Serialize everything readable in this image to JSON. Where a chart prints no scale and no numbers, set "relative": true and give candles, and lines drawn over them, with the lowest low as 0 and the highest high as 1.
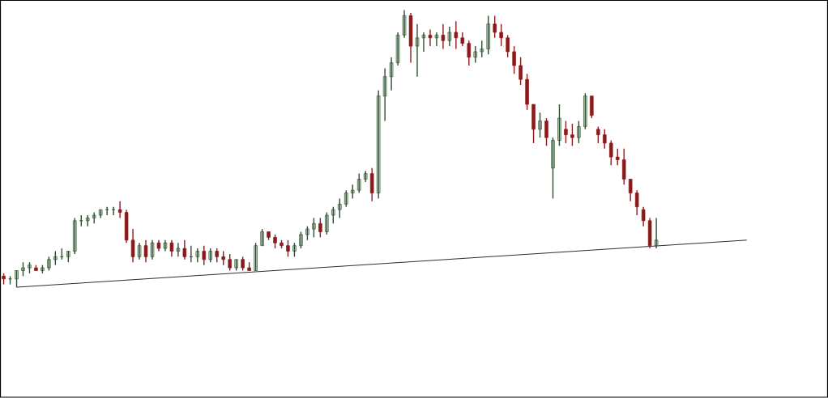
{
  "chart_data": {
    "type": "candlestick",
    "relative": true,
    "categories": [
      null,
      null,
      null,
      null,
      null,
      null,
      null,
      null,
      null,
      null,
      null,
      null,
      null,
      null,
      null,
      null,
      null,
      null,
      null,
      null,
      null,
      null,
      null,
      null,
      null,
      null,
      null,
      null,
      null,
      null,
      null,
      null,
      null,
      null,
      null,
      null,
      null,
      null,
      null,
      null,
      null,
      null,
      null,
      null,
      null,
      null,
      null,
      null,
      null,
      null,
      null,
      null,
      null,
      null,
      null,
      null,
      null,
      null,
      null,
      null,
      null,
      null,
      null,
      null,
      null,
      null,
      null,
      null,
      null,
      null,
      null,
      null,
      null,
      null,
      null,
      null,
      null,
      null,
      null,
      null,
      null,
      null,
      null,
      null,
      null,
      null,
      null,
      null,
      null,
      null,
      null,
      null,
      null,
      null,
      null,
      null,
      null,
      null,
      null,
      null,
      null,
      null,
      null,
      null,
      null,
      null,
      null,
      null,
      null,
      null,
      null,
      null,
      null,
      null,
      null,
      null,
      null,
      null,
      null,
      null,
      null,
      null,
      null,
      null,
      null,
      null,
      null,
      null
    ],
    "ohlc": [
      [
        0.04,
        0.05,
        0.01,
        0.03
      ],
      [
        0.03,
        0.04,
        0.01,
        0.03
      ],
      [
        0.03,
        0.06,
        0,
        0.06
      ],
      [
        0.06,
        0.09,
        0.04,
        0.07
      ],
      [
        0.07,
        0.09,
        0.05,
        0.08
      ],
      [
        0.07,
        0.08,
        0.06,
        0.06
      ],
      [
        0.06,
        0.08,
        0.05,
        0.07
      ],
      [
        0.07,
        0.11,
        0.06,
        0.1
      ],
      [
        0.1,
        0.13,
        0.08,
        0.11
      ],
      [
        0.11,
        0.14,
        0.1,
        0.11
      ],
      [
        0.11,
        0.13,
        0.09,
        0.13
      ],
      [
        0.13,
        0.25,
        0.12,
        0.24
      ],
      [
        0.24,
        0.26,
        0.22,
        0.24
      ],
      [
        0.24,
        0.26,
        0.22,
        0.25
      ],
      [
        0.25,
        0.27,
        0.23,
        0.26
      ],
      [
        0.26,
        0.28,
        0.25,
        0.28
      ],
      [
        0.28,
        0.29,
        0.26,
        0.28
      ],
      [
        0.28,
        0.29,
        0.26,
        0.28
      ],
      [
        0.28,
        0.31,
        0.25,
        0.27
      ],
      [
        0.27,
        0.28,
        0.16,
        0.17
      ],
      [
        0.17,
        0.21,
        0.09,
        0.11
      ],
      [
        0.11,
        0.16,
        0.1,
        0.15
      ],
      [
        0.15,
        0.17,
        0.09,
        0.11
      ],
      [
        0.11,
        0.17,
        0.1,
        0.16
      ],
      [
        0.16,
        0.17,
        0.13,
        0.14
      ],
      [
        0.14,
        0.17,
        0.13,
        0.16
      ],
      [
        0.16,
        0.17,
        0.11,
        0.13
      ],
      [
        0.13,
        0.16,
        0.11,
        0.14
      ],
      [
        0.14,
        0.17,
        0.1,
        0.11
      ],
      [
        0.11,
        0.15,
        0.09,
        0.11
      ],
      [
        0.11,
        0.14,
        0.09,
        0.13
      ],
      [
        0.13,
        0.15,
        0.08,
        0.1
      ],
      [
        0.1,
        0.14,
        0.09,
        0.13
      ],
      [
        0.13,
        0.14,
        0.09,
        0.11
      ],
      [
        0.11,
        0.13,
        0.08,
        0.1
      ],
      [
        0.1,
        0.12,
        0.06,
        0.07
      ],
      [
        0.07,
        0.1,
        0.06,
        0.1
      ],
      [
        0.1,
        0.11,
        0.06,
        0.07
      ],
      [
        0.07,
        0.09,
        0.06,
        0.06
      ],
      [
        0.06,
        0.16,
        0.06,
        0.15
      ],
      [
        0.15,
        0.21,
        0.15,
        0.2
      ],
      [
        0.2,
        0.2,
        0.17,
        0.18
      ],
      [
        0.18,
        0.19,
        0.14,
        0.16
      ],
      [
        0.16,
        0.17,
        0.14,
        0.15
      ],
      [
        0.15,
        0.17,
        0.11,
        0.13
      ],
      [
        0.13,
        0.16,
        0.11,
        0.15
      ],
      [
        0.15,
        0.2,
        0.14,
        0.19
      ],
      [
        0.19,
        0.22,
        0.17,
        0.21
      ],
      [
        0.21,
        0.25,
        0.18,
        0.23
      ],
      [
        0.23,
        0.25,
        0.18,
        0.2
      ],
      [
        0.2,
        0.27,
        0.19,
        0.26
      ],
      [
        0.26,
        0.29,
        0.23,
        0.28
      ],
      [
        0.28,
        0.32,
        0.25,
        0.3
      ],
      [
        0.3,
        0.35,
        0.29,
        0.34
      ],
      [
        0.34,
        0.37,
        0.32,
        0.35
      ],
      [
        0.35,
        0.41,
        0.34,
        0.39
      ],
      [
        0.39,
        0.42,
        0.38,
        0.41
      ],
      [
        0.41,
        0.43,
        0.31,
        0.34
      ],
      [
        0.34,
        0.71,
        0.32,
        0.69
      ],
      [
        0.69,
        0.79,
        0.6,
        0.76
      ],
      [
        0.76,
        0.83,
        0.71,
        0.81
      ],
      [
        0.81,
        0.92,
        0.8,
        0.91
      ],
      [
        0.91,
        1,
        0.9,
        0.98
      ],
      [
        0.98,
        0.99,
        0.81,
        0.87
      ],
      [
        0.87,
        0.95,
        0.76,
        0.9
      ],
      [
        0.9,
        0.92,
        0.85,
        0.91
      ],
      [
        0.91,
        0.93,
        0.87,
        0.9
      ],
      [
        0.9,
        0.92,
        0.87,
        0.91
      ],
      [
        0.91,
        0.95,
        0.86,
        0.89
      ],
      [
        0.89,
        0.94,
        0.87,
        0.92
      ],
      [
        0.92,
        0.96,
        0.86,
        0.9
      ],
      [
        0.9,
        0.92,
        0.87,
        0.88
      ],
      [
        0.88,
        0.89,
        0.8,
        0.83
      ],
      [
        0.83,
        0.87,
        0.81,
        0.85
      ],
      [
        0.85,
        0.89,
        0.83,
        0.86
      ],
      [
        0.86,
        0.98,
        0.84,
        0.95
      ],
      [
        0.95,
        0.98,
        0.9,
        0.92
      ],
      [
        0.92,
        0.95,
        0.87,
        0.9
      ],
      [
        0.9,
        0.91,
        0.83,
        0.85
      ],
      [
        0.85,
        0.87,
        0.77,
        0.8
      ],
      [
        0.8,
        0.83,
        0.73,
        0.75
      ],
      [
        0.75,
        0.77,
        0.64,
        0.66
      ],
      [
        0.66,
        0.66,
        0.52,
        0.57
      ],
      [
        0.57,
        0.63,
        0.54,
        0.6
      ],
      [
        0.6,
        0.61,
        0.51,
        0.54
      ],
      [
        0.43,
        0.54,
        0.32,
        0.53
      ],
      [
        0.53,
        0.66,
        0.51,
        0.61
      ],
      [
        0.57,
        0.6,
        0.52,
        0.55
      ],
      [
        0.55,
        0.59,
        0.51,
        0.54
      ],
      [
        0.54,
        0.6,
        0.52,
        0.58
      ],
      [
        0.58,
        0.7,
        0.57,
        0.69
      ],
      [
        0.69,
        0.69,
        0.61,
        0.62
      ],
      [
        0.57,
        0.58,
        0.52,
        0.55
      ],
      [
        0.55,
        0.57,
        0.5,
        0.52
      ],
      [
        0.52,
        0.53,
        0.44,
        0.47
      ],
      [
        0.47,
        0.5,
        0.44,
        0.46
      ],
      [
        0.46,
        0.5,
        0.37,
        0.39
      ],
      [
        0.39,
        0.39,
        0.31,
        0.34
      ],
      [
        0.34,
        0.35,
        0.26,
        0.29
      ],
      [
        0.28,
        0.29,
        0.22,
        0.24
      ],
      [
        0.24,
        0.25,
        0.14,
        0.15
      ],
      [
        0.15,
        0.25,
        0.14,
        0.17
      ],
      null,
      null,
      null,
      null,
      null,
      null,
      null,
      null,
      null,
      null,
      null,
      null,
      null,
      null,
      null,
      null,
      null,
      null,
      null,
      null,
      null,
      null,
      null,
      null,
      null,
      null
    ],
    "series": [
      {
        "type": "line",
        "values": [
          null,
          null,
          0,
          null,
          null,
          null,
          null,
          null,
          null,
          null,
          null,
          null,
          null,
          null,
          null,
          null,
          null,
          null,
          null,
          null,
          null,
          null,
          null,
          null,
          null,
          null,
          null,
          null,
          null,
          null,
          null,
          null,
          null,
          null,
          null,
          null,
          null,
          null,
          null,
          null,
          null,
          null,
          null,
          null,
          null,
          null,
          null,
          null,
          null,
          null,
          null,
          null,
          null,
          null,
          null,
          null,
          null,
          null,
          null,
          null,
          null,
          null,
          null,
          null,
          null,
          null,
          null,
          null,
          null,
          null,
          null,
          null,
          null,
          null,
          null,
          null,
          null,
          null,
          null,
          null,
          null,
          null,
          null,
          null,
          null,
          null,
          null,
          null,
          null,
          null,
          null,
          null,
          null,
          null,
          null,
          null,
          null,
          null,
          null,
          null,
          null,
          null,
          null,
          null,
          null,
          null,
          null,
          null,
          null,
          null,
          null,
          null,
          null,
          null,
          null,
          0.17,
          null,
          null,
          null,
          null,
          null,
          null,
          null,
          null,
          null,
          null,
          null,
          null
        ],
        "color": "#000000"
      }
    ]
  }
}
